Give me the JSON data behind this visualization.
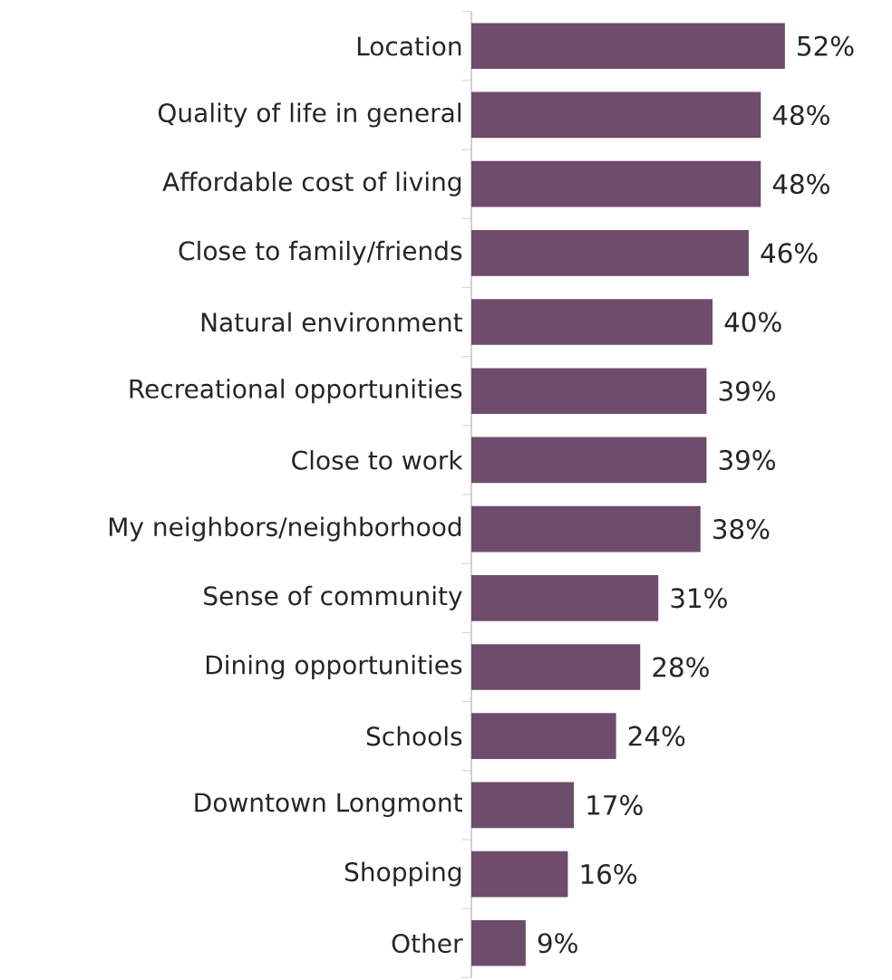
{
  "chart_data": {
    "type": "bar",
    "orientation": "horizontal",
    "categories": [
      "Location",
      "Quality of life in general",
      "Affordable cost of living",
      "Close to family/friends",
      "Natural environment",
      "Recreational opportunities",
      "Close to work",
      "My neighbors/neighborhood",
      "Sense of community",
      "Dining opportunities",
      "Schools",
      "Downtown Longmont",
      "Shopping",
      "Other"
    ],
    "values": [
      52,
      48,
      48,
      46,
      40,
      39,
      39,
      38,
      31,
      28,
      24,
      17,
      16,
      9
    ],
    "value_labels": [
      "52%",
      "48%",
      "48%",
      "46%",
      "40%",
      "39%",
      "39%",
      "38%",
      "31%",
      "28%",
      "24%",
      "17%",
      "16%",
      "9%"
    ],
    "color": "#6e4c6b"
  }
}
